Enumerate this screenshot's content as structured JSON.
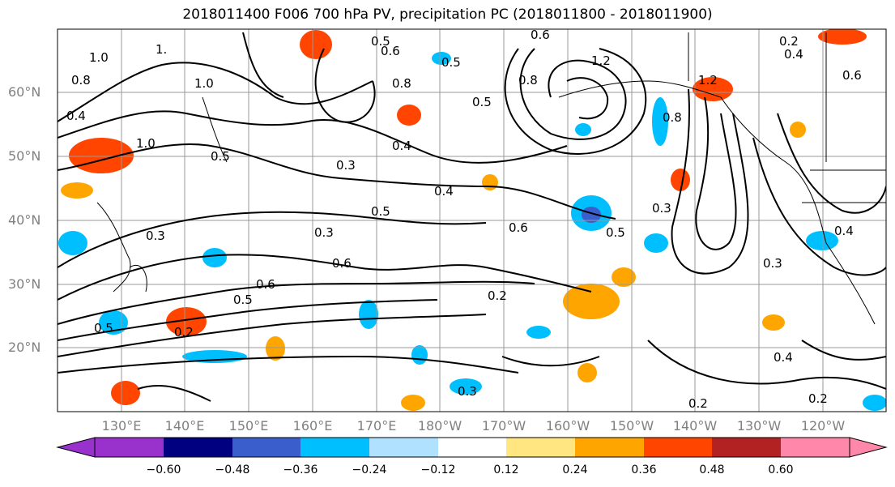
{
  "title": "2018011400 F006 700 hPa PV, precipitation PC (2018011800 - 2018011900)",
  "map": {
    "lat_labels": [
      "60°N",
      "50°N",
      "40°N",
      "30°N",
      "20°N"
    ],
    "lon_labels": [
      "130°E",
      "140°E",
      "150°E",
      "160°E",
      "170°E",
      "180°W",
      "170°W",
      "160°W",
      "150°W",
      "140°W",
      "130°W",
      "120°W"
    ],
    "contour_labels": [
      "1.0",
      "1.",
      "0.8",
      "0.4",
      "1.0",
      "1.0",
      "0.5",
      "0.4",
      "0.8",
      "0.5",
      "0.6",
      "0.5",
      "0.8",
      "0.6",
      "1.2",
      "0.5",
      "0.8",
      "1.2",
      "0.2",
      "0.4",
      "0.6",
      "0.4",
      "0.3",
      "0.4",
      "0.5",
      "0.3",
      "0.6",
      "0.5",
      "0.3",
      "0.3",
      "0.6",
      "0.5",
      "0.6",
      "0.2",
      "0.3",
      "0.5",
      "0.2",
      "0.4",
      "0.2",
      "0.3",
      "0.2"
    ],
    "contour_color": "#000000",
    "grid_color": "#999999"
  },
  "colorbar": {
    "tick_labels": [
      "−0.60",
      "−0.48",
      "−0.36",
      "−0.24",
      "−0.12",
      "0.12",
      "0.24",
      "0.36",
      "0.48",
      "0.60"
    ],
    "colors": [
      "#9932cc",
      "#000080",
      "#3a5fcd",
      "#00bfff",
      "#b0e2ff",
      "#ffffff",
      "#ffe680",
      "#ffa500",
      "#ff4500",
      "#b22222",
      "#ff88aa"
    ]
  }
}
